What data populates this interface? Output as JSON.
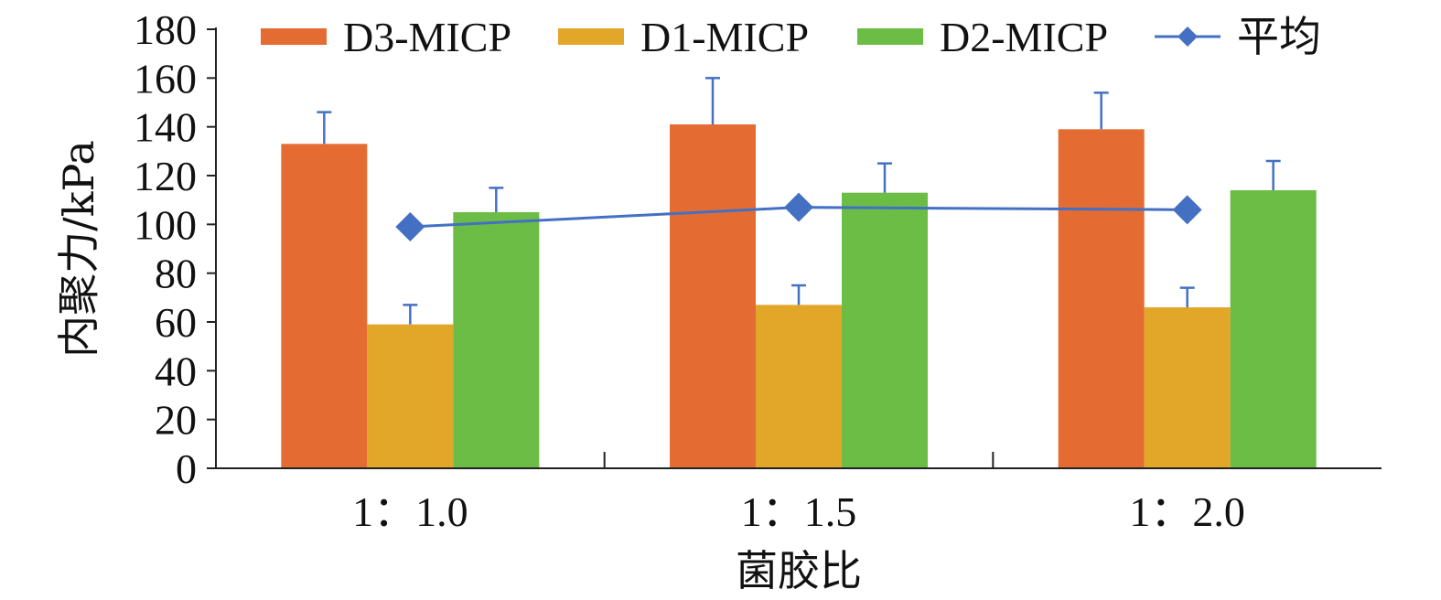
{
  "chart_data": {
    "type": "bar",
    "xlabel": "菌胶比",
    "ylabel": "内聚力/kPa",
    "ylim": [
      0,
      180
    ],
    "yticks": [
      0,
      20,
      40,
      60,
      80,
      100,
      120,
      140,
      160,
      180
    ],
    "categories": [
      "1：1.0",
      "1：1.5",
      "1：2.0"
    ],
    "series": [
      {
        "name": "D3-MICP",
        "kind": "bar",
        "color": "#E46C32",
        "values": [
          133,
          141,
          139
        ],
        "error": [
          13,
          19,
          15
        ]
      },
      {
        "name": "D1-MICP",
        "kind": "bar",
        "color": "#E2A629",
        "values": [
          59,
          67,
          66
        ],
        "error": [
          8,
          8,
          8
        ]
      },
      {
        "name": "D2-MICP",
        "kind": "bar",
        "color": "#6BBD45",
        "values": [
          105,
          113,
          114
        ],
        "error": [
          10,
          12,
          12
        ]
      },
      {
        "name": "平均",
        "kind": "line",
        "color": "#4470C4",
        "values": [
          99,
          107,
          106
        ],
        "marker": "diamond"
      }
    ],
    "legend": "top",
    "grid": false
  }
}
